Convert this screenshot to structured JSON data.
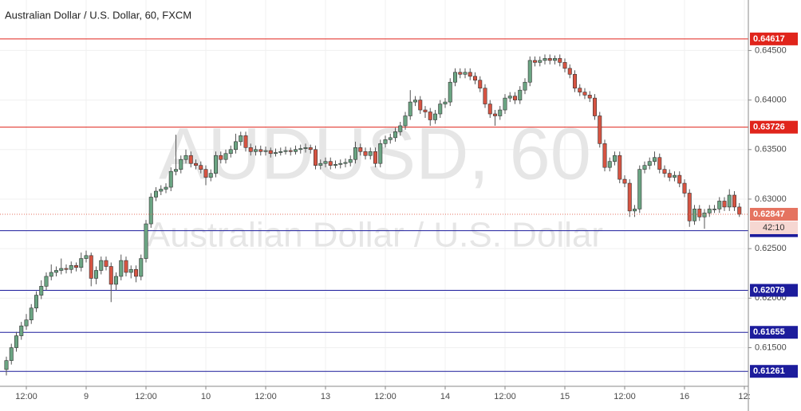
{
  "chart_data": {
    "type": "candlestick",
    "title": "Australian Dollar / U.S. Dollar, 60, FXCM",
    "watermark": "AUDUSD, 60",
    "watermark_subtitle": "Australian Dollar / U.S. Dollar",
    "up_color": "#6ba583",
    "down_color": "#d75442",
    "ylim": [
      0.6111,
      0.6501
    ],
    "yticks": [
      {
        "value": 0.645,
        "label": "0.64500"
      },
      {
        "value": 0.64,
        "label": "0.64000"
      },
      {
        "value": 0.635,
        "label": "0.63500"
      },
      {
        "value": 0.63,
        "label": "0.63000"
      },
      {
        "value": 0.625,
        "label": "0.62500"
      },
      {
        "value": 0.62,
        "label": "0.62000"
      },
      {
        "value": 0.615,
        "label": "0.61500"
      }
    ],
    "xticks": [
      {
        "value": 4,
        "label": "12:00"
      },
      {
        "value": 16,
        "label": "9"
      },
      {
        "value": 28,
        "label": "12:00"
      },
      {
        "value": 40,
        "label": "10"
      },
      {
        "value": 52,
        "label": "12:00"
      },
      {
        "value": 64,
        "label": "13"
      },
      {
        "value": 76,
        "label": "12:00"
      },
      {
        "value": 88,
        "label": "14"
      },
      {
        "value": 100,
        "label": "12:00"
      },
      {
        "value": 112,
        "label": "15"
      },
      {
        "value": 124,
        "label": "12:00"
      },
      {
        "value": 136,
        "label": "16"
      },
      {
        "value": 148,
        "label": "12:"
      }
    ],
    "levels": [
      {
        "value": 0.64617,
        "color": "#e0241b"
      },
      {
        "value": 0.63726,
        "color": "#e0241b"
      },
      {
        "value": 0.62681,
        "color": "#1c1c9c"
      },
      {
        "value": 0.62079,
        "color": "#1c1c9c"
      },
      {
        "value": 0.61655,
        "color": "#1c1c9c"
      },
      {
        "value": 0.61261,
        "color": "#1c1c9c"
      }
    ],
    "current_price": {
      "value": 0.62847,
      "countdown": "42:10",
      "color": "#e57360"
    },
    "open": [
      0.6128,
      0.6137,
      0.615,
      0.6162,
      0.6172,
      0.6178,
      0.619,
      0.6203,
      0.6212,
      0.6222,
      0.6226,
      0.6228,
      0.623,
      0.6229,
      0.6233,
      0.6231,
      0.624,
      0.6243,
      0.622,
      0.6228,
      0.6238,
      0.6232,
      0.6214,
      0.6222,
      0.6238,
      0.6226,
      0.6229,
      0.6222,
      0.624,
      0.6275,
      0.6302,
      0.6308,
      0.631,
      0.6312,
      0.6328,
      0.633,
      0.634,
      0.6344,
      0.6336,
      0.6334,
      0.633,
      0.6322,
      0.6326,
      0.6344,
      0.634,
      0.6346,
      0.635,
      0.6358,
      0.6364,
      0.6352,
      0.6348,
      0.635,
      0.6348,
      0.6349,
      0.6346,
      0.6347,
      0.6348,
      0.6349,
      0.6348,
      0.635,
      0.6351,
      0.6352,
      0.635,
      0.6334,
      0.6336,
      0.6338,
      0.6334,
      0.6335,
      0.6336,
      0.6337,
      0.634,
      0.6352,
      0.6348,
      0.6344,
      0.6348,
      0.6336,
      0.6356,
      0.636,
      0.6362,
      0.6368,
      0.6374,
      0.6384,
      0.6398,
      0.64,
      0.639,
      0.6388,
      0.638,
      0.6386,
      0.6396,
      0.6398,
      0.6418,
      0.6428,
      0.6426,
      0.6428,
      0.6424,
      0.642,
      0.6412,
      0.6396,
      0.6386,
      0.6384,
      0.639,
      0.6402,
      0.6404,
      0.64,
      0.641,
      0.6418,
      0.644,
      0.6438,
      0.644,
      0.6442,
      0.644,
      0.6442,
      0.6438,
      0.6432,
      0.6426,
      0.6412,
      0.6408,
      0.6405,
      0.6402,
      0.6384,
      0.6356,
      0.6332,
      0.6338,
      0.6344,
      0.632,
      0.6316,
      0.6288,
      0.629,
      0.633,
      0.6334,
      0.6338,
      0.6342,
      0.633,
      0.6326,
      0.6322,
      0.6324,
      0.6316,
      0.6306,
      0.6278,
      0.629,
      0.6282,
      0.6286,
      0.629,
      0.629,
      0.6298,
      0.6292,
      0.6304,
      0.6292
    ],
    "high": [
      0.6141,
      0.6154,
      0.6166,
      0.6176,
      0.6184,
      0.6194,
      0.6207,
      0.6218,
      0.6226,
      0.6234,
      0.6232,
      0.624,
      0.6234,
      0.6237,
      0.6236,
      0.6246,
      0.6248,
      0.6246,
      0.6232,
      0.6242,
      0.6242,
      0.6236,
      0.6226,
      0.6244,
      0.6242,
      0.6233,
      0.6233,
      0.6244,
      0.6279,
      0.6306,
      0.6312,
      0.6314,
      0.6316,
      0.6332,
      0.6365,
      0.6344,
      0.635,
      0.6348,
      0.634,
      0.6338,
      0.6334,
      0.633,
      0.6348,
      0.6348,
      0.635,
      0.6354,
      0.6366,
      0.6368,
      0.6368,
      0.6356,
      0.6354,
      0.6354,
      0.6353,
      0.6352,
      0.6351,
      0.6352,
      0.6353,
      0.6352,
      0.6354,
      0.6355,
      0.6356,
      0.6355,
      0.6354,
      0.634,
      0.6342,
      0.6342,
      0.6339,
      0.634,
      0.6341,
      0.6344,
      0.6358,
      0.6356,
      0.6352,
      0.6352,
      0.6352,
      0.636,
      0.6364,
      0.6366,
      0.6372,
      0.6378,
      0.6388,
      0.641,
      0.6404,
      0.6404,
      0.6394,
      0.6392,
      0.639,
      0.64,
      0.6402,
      0.6422,
      0.6432,
      0.6432,
      0.6432,
      0.6432,
      0.6428,
      0.6424,
      0.6416,
      0.64,
      0.639,
      0.6394,
      0.6406,
      0.6408,
      0.6408,
      0.6414,
      0.6422,
      0.6444,
      0.6444,
      0.6444,
      0.6446,
      0.6446,
      0.6445,
      0.6446,
      0.6442,
      0.6436,
      0.643,
      0.6416,
      0.6412,
      0.6409,
      0.6406,
      0.6388,
      0.636,
      0.6342,
      0.6348,
      0.6348,
      0.6324,
      0.632,
      0.6294,
      0.6334,
      0.6338,
      0.6342,
      0.6348,
      0.6346,
      0.6334,
      0.633,
      0.6328,
      0.6328,
      0.632,
      0.631,
      0.6294,
      0.6294,
      0.629,
      0.6294,
      0.6294,
      0.6302,
      0.6302,
      0.631,
      0.6308,
      0.6296
    ],
    "low": [
      0.6122,
      0.6133,
      0.6146,
      0.6158,
      0.6168,
      0.6174,
      0.6186,
      0.6199,
      0.6208,
      0.6218,
      0.6222,
      0.6224,
      0.6225,
      0.6225,
      0.6227,
      0.6227,
      0.6236,
      0.6212,
      0.6214,
      0.6224,
      0.6228,
      0.6196,
      0.6208,
      0.6218,
      0.6222,
      0.622,
      0.6216,
      0.6218,
      0.6236,
      0.6271,
      0.6298,
      0.6304,
      0.6306,
      0.6308,
      0.6324,
      0.6326,
      0.6336,
      0.6332,
      0.633,
      0.6326,
      0.6314,
      0.6318,
      0.6322,
      0.6336,
      0.6336,
      0.6342,
      0.6346,
      0.6354,
      0.6348,
      0.6344,
      0.6344,
      0.6344,
      0.6344,
      0.6342,
      0.6343,
      0.6344,
      0.6345,
      0.6344,
      0.6345,
      0.6346,
      0.6347,
      0.6346,
      0.633,
      0.633,
      0.6332,
      0.633,
      0.6331,
      0.6331,
      0.6332,
      0.6333,
      0.6336,
      0.6344,
      0.634,
      0.634,
      0.6332,
      0.6332,
      0.6352,
      0.6356,
      0.6358,
      0.6364,
      0.637,
      0.638,
      0.6394,
      0.6386,
      0.6382,
      0.6374,
      0.6376,
      0.6382,
      0.6392,
      0.6394,
      0.6414,
      0.6422,
      0.6422,
      0.642,
      0.6416,
      0.6408,
      0.6392,
      0.6382,
      0.6374,
      0.638,
      0.6386,
      0.6398,
      0.6396,
      0.6396,
      0.6406,
      0.6414,
      0.6434,
      0.6434,
      0.6436,
      0.6436,
      0.6436,
      0.6434,
      0.6428,
      0.6422,
      0.6408,
      0.6404,
      0.6401,
      0.6398,
      0.638,
      0.6352,
      0.6328,
      0.6328,
      0.6334,
      0.6316,
      0.6312,
      0.6282,
      0.6282,
      0.6286,
      0.6326,
      0.633,
      0.6334,
      0.6326,
      0.6322,
      0.6318,
      0.6318,
      0.6312,
      0.6302,
      0.6272,
      0.6274,
      0.6278,
      0.627,
      0.6282,
      0.6286,
      0.6286,
      0.6288,
      0.6288,
      0.6288,
      0.6282
    ],
    "close": [
      0.6137,
      0.615,
      0.6162,
      0.6172,
      0.6178,
      0.619,
      0.6203,
      0.6212,
      0.6222,
      0.6226,
      0.6228,
      0.623,
      0.6229,
      0.6233,
      0.6231,
      0.624,
      0.6243,
      0.622,
      0.6228,
      0.6238,
      0.6232,
      0.6214,
      0.6222,
      0.6238,
      0.6226,
      0.6229,
      0.6222,
      0.624,
      0.6275,
      0.6302,
      0.6308,
      0.631,
      0.6312,
      0.6328,
      0.633,
      0.634,
      0.6344,
      0.6336,
      0.6334,
      0.633,
      0.6322,
      0.6326,
      0.6344,
      0.634,
      0.6346,
      0.635,
      0.6358,
      0.6364,
      0.6352,
      0.6348,
      0.635,
      0.6348,
      0.6349,
      0.6346,
      0.6347,
      0.6348,
      0.6349,
      0.6348,
      0.635,
      0.6351,
      0.6352,
      0.635,
      0.6334,
      0.6336,
      0.6338,
      0.6334,
      0.6335,
      0.6336,
      0.6337,
      0.634,
      0.6352,
      0.6348,
      0.6344,
      0.6348,
      0.6336,
      0.6356,
      0.636,
      0.6362,
      0.6368,
      0.6374,
      0.6384,
      0.6398,
      0.64,
      0.639,
      0.6388,
      0.638,
      0.6386,
      0.6396,
      0.6398,
      0.6418,
      0.6428,
      0.6426,
      0.6428,
      0.6424,
      0.642,
      0.6412,
      0.6396,
      0.6386,
      0.6384,
      0.639,
      0.6402,
      0.6404,
      0.64,
      0.641,
      0.6418,
      0.644,
      0.6438,
      0.644,
      0.6442,
      0.644,
      0.6442,
      0.6438,
      0.6432,
      0.6426,
      0.6412,
      0.6408,
      0.6405,
      0.6402,
      0.6384,
      0.6356,
      0.6332,
      0.6338,
      0.6344,
      0.632,
      0.6316,
      0.6288,
      0.629,
      0.633,
      0.6334,
      0.6338,
      0.6342,
      0.633,
      0.6326,
      0.6322,
      0.6324,
      0.6316,
      0.6306,
      0.6278,
      0.629,
      0.6282,
      0.6286,
      0.629,
      0.629,
      0.6298,
      0.6292,
      0.6304,
      0.6292,
      0.62847
    ]
  }
}
